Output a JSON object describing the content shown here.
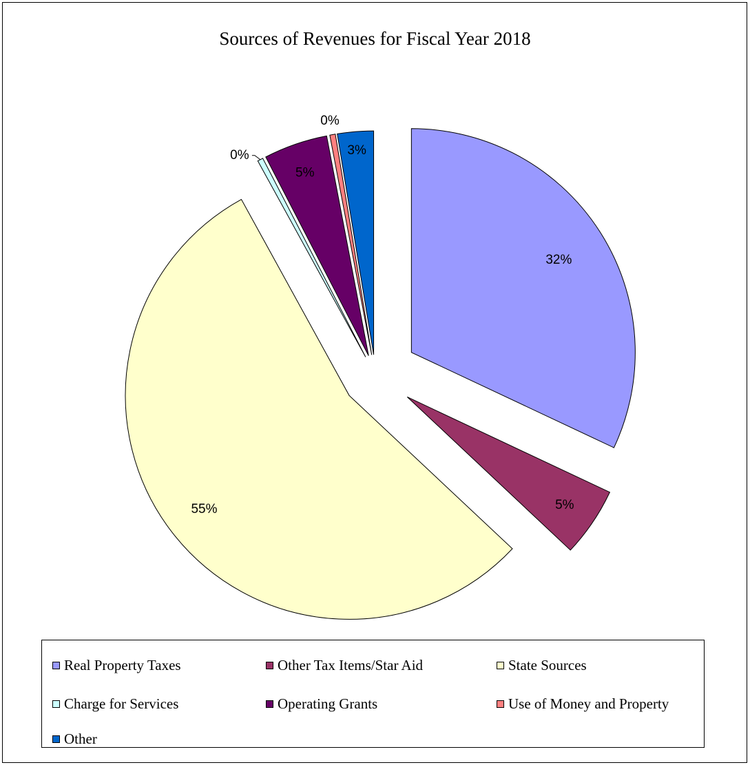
{
  "chart_data": {
    "type": "pie",
    "title": "Sources of Revenues for Fiscal Year 2018",
    "slices": [
      {
        "name": "Real Property Taxes",
        "percent": 32,
        "label": "32%",
        "color": "#9999ff"
      },
      {
        "name": "Other Tax Items/Star Aid",
        "percent": 5,
        "label": "5%",
        "color": "#993366"
      },
      {
        "name": "State Sources",
        "percent": 55,
        "label": "55%",
        "color": "#ffffcc"
      },
      {
        "name": "Charge for Services",
        "percent": 0.4,
        "label": "0%",
        "color": "#ccffff"
      },
      {
        "name": "Operating Grants",
        "percent": 4.6,
        "label": "5%",
        "color": "#660066"
      },
      {
        "name": "Use of Money and Property",
        "percent": 0.4,
        "label": "0%",
        "color": "#ff8080"
      },
      {
        "name": "Other",
        "percent": 2.6,
        "label": "3%",
        "color": "#0066cc"
      }
    ],
    "legend_position": "bottom"
  }
}
